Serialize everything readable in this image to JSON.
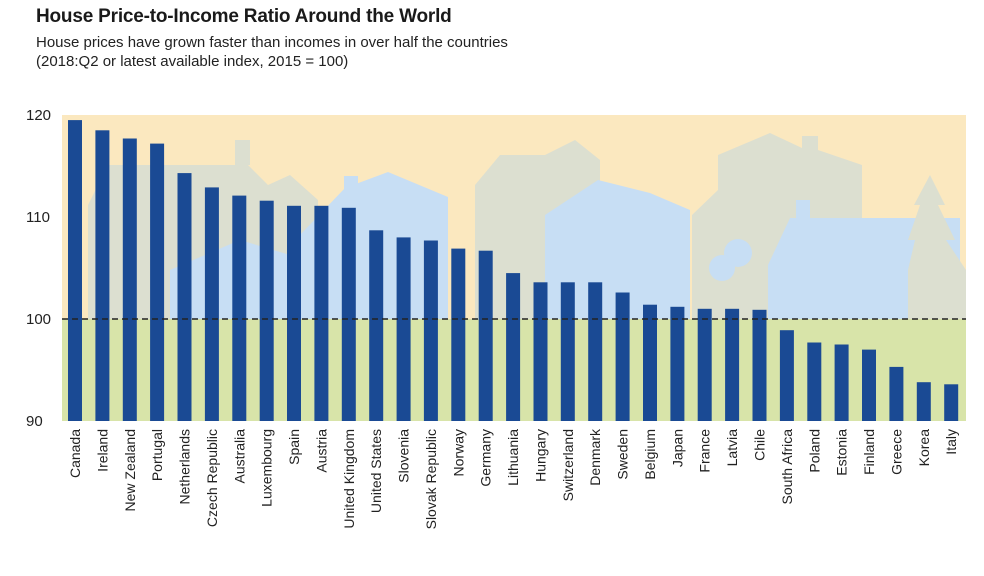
{
  "chart_data": {
    "type": "bar",
    "title": "House Price-to-Income Ratio Around the World",
    "subtitle": "House prices have grown faster than incomes in over half the countries",
    "note": "(2018:Q2 or latest available index, 2015 = 100)",
    "xlabel": "",
    "ylabel": "",
    "ylim": [
      90,
      120
    ],
    "yticks": [
      90,
      100,
      110,
      120
    ],
    "reference_line": 100,
    "categories": [
      "Canada",
      "Ireland",
      "New Zealand",
      "Portugal",
      "Netherlands",
      "Czech Republic",
      "Australia",
      "Luxembourg",
      "Spain",
      "Austria",
      "United Kingdom",
      "United States",
      "Slovenia",
      "Slovak Republic",
      "Norway",
      "Germany",
      "Lithuania",
      "Hungary",
      "Switzerland",
      "Denmark",
      "Sweden",
      "Belgium",
      "Japan",
      "France",
      "Latvia",
      "Chile",
      "South Africa",
      "Poland",
      "Estonia",
      "Finland",
      "Greece",
      "Korea",
      "Italy"
    ],
    "values": [
      119.5,
      118.5,
      117.7,
      117.2,
      114.3,
      112.9,
      112.1,
      111.6,
      111.1,
      111.1,
      110.9,
      108.7,
      108.0,
      107.7,
      106.9,
      106.7,
      104.5,
      103.6,
      103.6,
      103.6,
      102.6,
      101.4,
      101.2,
      101.0,
      101.0,
      100.9,
      98.9,
      97.7,
      97.5,
      97.0,
      95.3,
      93.8,
      93.6
    ],
    "colors": {
      "bar": "#1a4a94",
      "above_bg": "#fbe8bf",
      "below_bg": "#d8e4a9",
      "house_gray": "#dcdfd0",
      "house_blue": "#c7def4",
      "ref_line": "#222222"
    }
  }
}
